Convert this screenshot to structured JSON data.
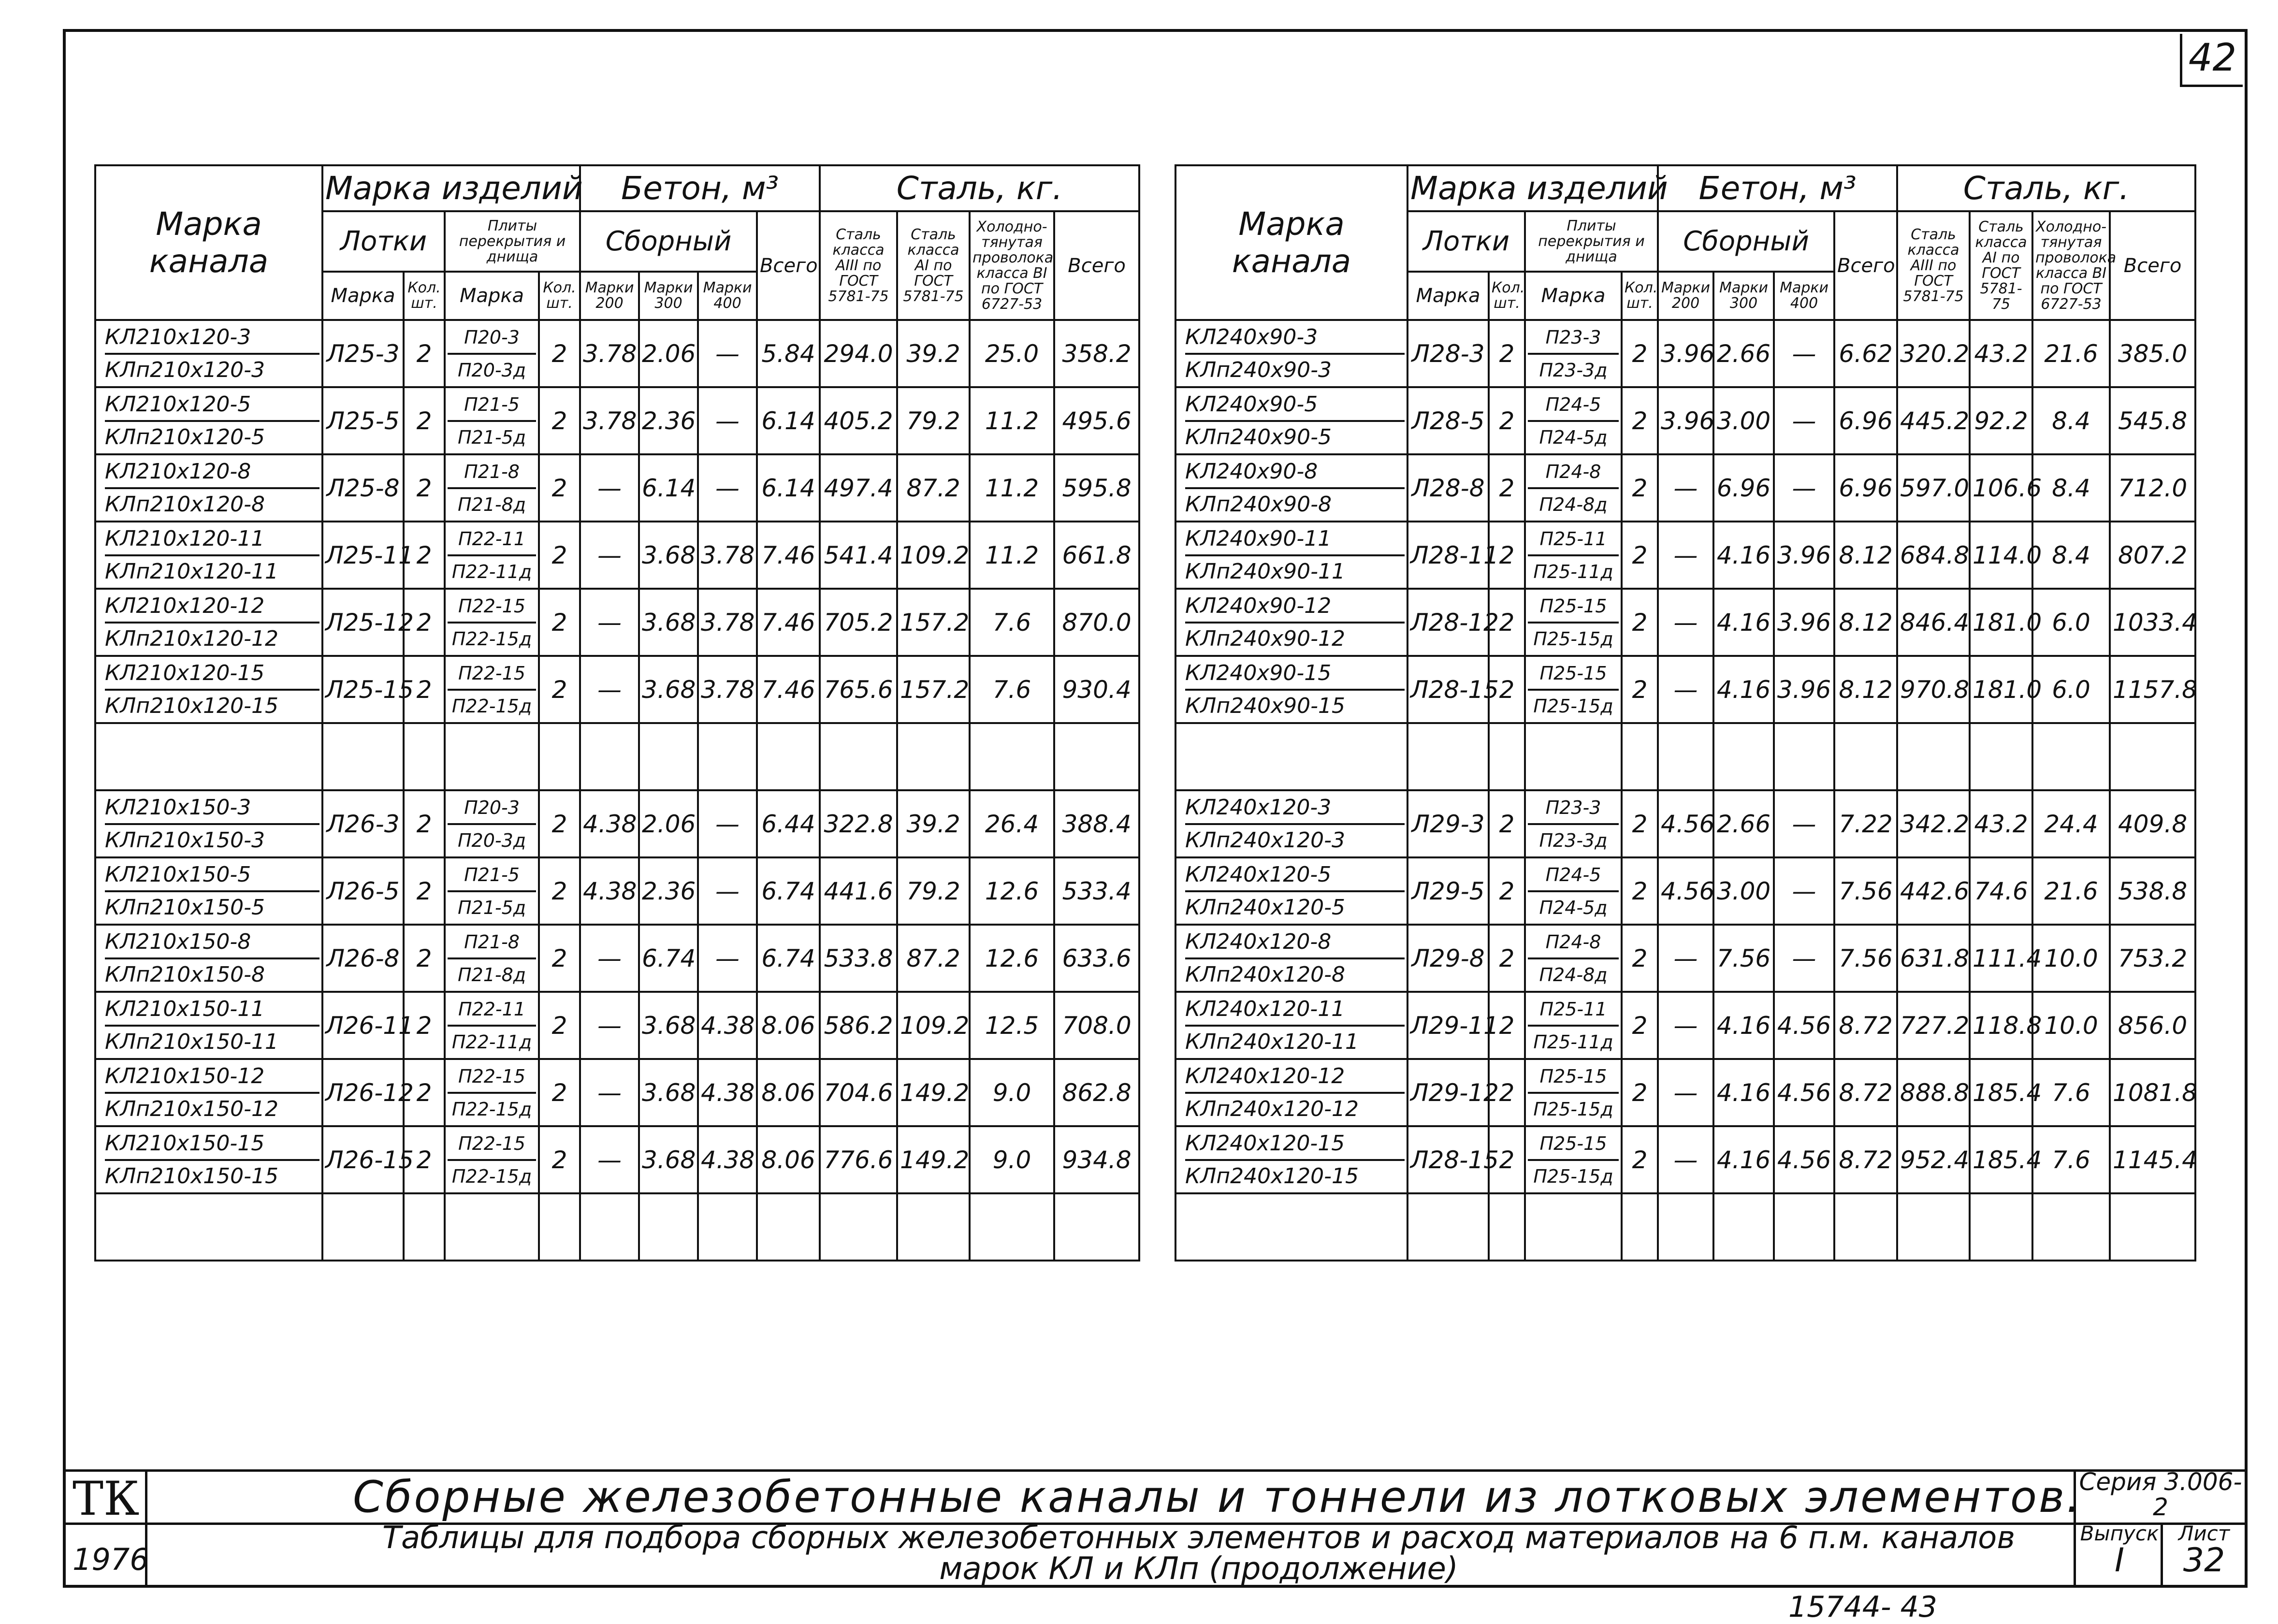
{
  "page_number": "42",
  "headers": {
    "marka_kanala": "Марка канала",
    "marka_izdeliy": "Марка изделий",
    "lotki": "Лотки",
    "plity": "Плиты перекрытия и днища",
    "beton": "Бетон, м³",
    "sbornyi": "Сборный",
    "vsego": "Всего",
    "stal": "Сталь, кг.",
    "stal_a3": "Сталь класса AIII по ГОСТ 5781-75",
    "stal_a1": "Сталь класса AI по ГОСТ 5781-75",
    "provoloka": "Холодно-тянутая проволока класса ВI по ГОСТ 6727-53",
    "marka": "Марка",
    "kol": "Кол. шт.",
    "m200": "Марки 200",
    "m300": "Марки 300",
    "m400": "Марки 400"
  },
  "left_table": {
    "group1": [
      {
        "names": [
          "КЛ210х120-3",
          "КЛп210х120-3"
        ],
        "lotok": "Л25-3",
        "lk": "2",
        "plity": [
          "П20-3",
          "П20-3д"
        ],
        "pk": "2",
        "b200": "3.78",
        "b300": "2.06",
        "b400": "—",
        "bv": "5.84",
        "a3": "294.0",
        "a1": "39.2",
        "pr": "25.0",
        "sv": "358.2"
      },
      {
        "names": [
          "КЛ210х120-5",
          "КЛп210х120-5"
        ],
        "lotok": "Л25-5",
        "lk": "2",
        "plity": [
          "П21-5",
          "П21-5д"
        ],
        "pk": "2",
        "b200": "3.78",
        "b300": "2.36",
        "b400": "—",
        "bv": "6.14",
        "a3": "405.2",
        "a1": "79.2",
        "pr": "11.2",
        "sv": "495.6"
      },
      {
        "names": [
          "КЛ210х120-8",
          "КЛп210х120-8"
        ],
        "lotok": "Л25-8",
        "lk": "2",
        "plity": [
          "П21-8",
          "П21-8д"
        ],
        "pk": "2",
        "b200": "—",
        "b300": "6.14",
        "b400": "—",
        "bv": "6.14",
        "a3": "497.4",
        "a1": "87.2",
        "pr": "11.2",
        "sv": "595.8"
      },
      {
        "names": [
          "КЛ210х120-11",
          "КЛп210х120-11"
        ],
        "lotok": "Л25-11",
        "lk": "2",
        "plity": [
          "П22-11",
          "П22-11д"
        ],
        "pk": "2",
        "b200": "—",
        "b300": "3.68",
        "b400": "3.78",
        "bv": "7.46",
        "a3": "541.4",
        "a1": "109.2",
        "pr": "11.2",
        "sv": "661.8"
      },
      {
        "names": [
          "КЛ210х120-12",
          "КЛп210х120-12"
        ],
        "lotok": "Л25-12",
        "lk": "2",
        "plity": [
          "П22-15",
          "П22-15д"
        ],
        "pk": "2",
        "b200": "—",
        "b300": "3.68",
        "b400": "3.78",
        "bv": "7.46",
        "a3": "705.2",
        "a1": "157.2",
        "pr": "7.6",
        "sv": "870.0"
      },
      {
        "names": [
          "КЛ210х120-15",
          "КЛп210х120-15"
        ],
        "lotok": "Л25-15",
        "lk": "2",
        "plity": [
          "П22-15",
          "П22-15д"
        ],
        "pk": "2",
        "b200": "—",
        "b300": "3.68",
        "b400": "3.78",
        "bv": "7.46",
        "a3": "765.6",
        "a1": "157.2",
        "pr": "7.6",
        "sv": "930.4"
      }
    ],
    "group2": [
      {
        "names": [
          "КЛ210х150-3",
          "КЛп210х150-3"
        ],
        "lotok": "Л26-3",
        "lk": "2",
        "plity": [
          "П20-3",
          "П20-3д"
        ],
        "pk": "2",
        "b200": "4.38",
        "b300": "2.06",
        "b400": "—",
        "bv": "6.44",
        "a3": "322.8",
        "a1": "39.2",
        "pr": "26.4",
        "sv": "388.4"
      },
      {
        "names": [
          "КЛ210х150-5",
          "КЛп210х150-5"
        ],
        "lotok": "Л26-5",
        "lk": "2",
        "plity": [
          "П21-5",
          "П21-5д"
        ],
        "pk": "2",
        "b200": "4.38",
        "b300": "2.36",
        "b400": "—",
        "bv": "6.74",
        "a3": "441.6",
        "a1": "79.2",
        "pr": "12.6",
        "sv": "533.4"
      },
      {
        "names": [
          "КЛ210х150-8",
          "КЛп210х150-8"
        ],
        "lotok": "Л26-8",
        "lk": "2",
        "plity": [
          "П21-8",
          "П21-8д"
        ],
        "pk": "2",
        "b200": "—",
        "b300": "6.74",
        "b400": "—",
        "bv": "6.74",
        "a3": "533.8",
        "a1": "87.2",
        "pr": "12.6",
        "sv": "633.6"
      },
      {
        "names": [
          "КЛ210х150-11",
          "КЛп210х150-11"
        ],
        "lotok": "Л26-11",
        "lk": "2",
        "plity": [
          "П22-11",
          "П22-11д"
        ],
        "pk": "2",
        "b200": "—",
        "b300": "3.68",
        "b400": "4.38",
        "bv": "8.06",
        "a3": "586.2",
        "a1": "109.2",
        "pr": "12.5",
        "sv": "708.0"
      },
      {
        "names": [
          "КЛ210х150-12",
          "КЛп210х150-12"
        ],
        "lotok": "Л26-12",
        "lk": "2",
        "plity": [
          "П22-15",
          "П22-15д"
        ],
        "pk": "2",
        "b200": "—",
        "b300": "3.68",
        "b400": "4.38",
        "bv": "8.06",
        "a3": "704.6",
        "a1": "149.2",
        "pr": "9.0",
        "sv": "862.8"
      },
      {
        "names": [
          "КЛ210х150-15",
          "КЛп210х150-15"
        ],
        "lotok": "Л26-15",
        "lk": "2",
        "plity": [
          "П22-15",
          "П22-15д"
        ],
        "pk": "2",
        "b200": "—",
        "b300": "3.68",
        "b400": "4.38",
        "bv": "8.06",
        "a3": "776.6",
        "a1": "149.2",
        "pr": "9.0",
        "sv": "934.8"
      }
    ]
  },
  "right_table": {
    "group1": [
      {
        "names": [
          "КЛ240х90-3",
          "КЛп240х90-3"
        ],
        "lotok": "Л28-3",
        "lk": "2",
        "plity": [
          "П23-3",
          "П23-3д"
        ],
        "pk": "2",
        "b200": "3.96",
        "b300": "2.66",
        "b400": "—",
        "bv": "6.62",
        "a3": "320.2",
        "a1": "43.2",
        "pr": "21.6",
        "sv": "385.0"
      },
      {
        "names": [
          "КЛ240х90-5",
          "КЛп240х90-5"
        ],
        "lotok": "Л28-5",
        "lk": "2",
        "plity": [
          "П24-5",
          "П24-5д"
        ],
        "pk": "2",
        "b200": "3.96",
        "b300": "3.00",
        "b400": "—",
        "bv": "6.96",
        "a3": "445.2",
        "a1": "92.2",
        "pr": "8.4",
        "sv": "545.8"
      },
      {
        "names": [
          "КЛ240х90-8",
          "КЛп240х90-8"
        ],
        "lotok": "Л28-8",
        "lk": "2",
        "plity": [
          "П24-8",
          "П24-8д"
        ],
        "pk": "2",
        "b200": "—",
        "b300": "6.96",
        "b400": "—",
        "bv": "6.96",
        "a3": "597.0",
        "a1": "106.6",
        "pr": "8.4",
        "sv": "712.0"
      },
      {
        "names": [
          "КЛ240х90-11",
          "КЛп240х90-11"
        ],
        "lotok": "Л28-11",
        "lk": "2",
        "plity": [
          "П25-11",
          "П25-11д"
        ],
        "pk": "2",
        "b200": "—",
        "b300": "4.16",
        "b400": "3.96",
        "bv": "8.12",
        "a3": "684.8",
        "a1": "114.0",
        "pr": "8.4",
        "sv": "807.2"
      },
      {
        "names": [
          "КЛ240х90-12",
          "КЛп240х90-12"
        ],
        "lotok": "Л28-12",
        "lk": "2",
        "plity": [
          "П25-15",
          "П25-15д"
        ],
        "pk": "2",
        "b200": "—",
        "b300": "4.16",
        "b400": "3.96",
        "bv": "8.12",
        "a3": "846.4",
        "a1": "181.0",
        "pr": "6.0",
        "sv": "1033.4"
      },
      {
        "names": [
          "КЛ240х90-15",
          "КЛп240х90-15"
        ],
        "lotok": "Л28-15",
        "lk": "2",
        "plity": [
          "П25-15",
          "П25-15д"
        ],
        "pk": "2",
        "b200": "—",
        "b300": "4.16",
        "b400": "3.96",
        "bv": "8.12",
        "a3": "970.8",
        "a1": "181.0",
        "pr": "6.0",
        "sv": "1157.8"
      }
    ],
    "group2": [
      {
        "names": [
          "КЛ240х120-3",
          "КЛп240х120-3"
        ],
        "lotok": "Л29-3",
        "lk": "2",
        "plity": [
          "П23-3",
          "П23-3д"
        ],
        "pk": "2",
        "b200": "4.56",
        "b300": "2.66",
        "b400": "—",
        "bv": "7.22",
        "a3": "342.2",
        "a1": "43.2",
        "pr": "24.4",
        "sv": "409.8"
      },
      {
        "names": [
          "КЛ240х120-5",
          "КЛп240х120-5"
        ],
        "lotok": "Л29-5",
        "lk": "2",
        "plity": [
          "П24-5",
          "П24-5д"
        ],
        "pk": "2",
        "b200": "4.56",
        "b300": "3.00",
        "b400": "—",
        "bv": "7.56",
        "a3": "442.6",
        "a1": "74.6",
        "pr": "21.6",
        "sv": "538.8"
      },
      {
        "names": [
          "КЛ240х120-8",
          "КЛп240х120-8"
        ],
        "lotok": "Л29-8",
        "lk": "2",
        "plity": [
          "П24-8",
          "П24-8д"
        ],
        "pk": "2",
        "b200": "—",
        "b300": "7.56",
        "b400": "—",
        "bv": "7.56",
        "a3": "631.8",
        "a1": "111.4",
        "pr": "10.0",
        "sv": "753.2"
      },
      {
        "names": [
          "КЛ240х120-11",
          "КЛп240х120-11"
        ],
        "lotok": "Л29-11",
        "lk": "2",
        "plity": [
          "П25-11",
          "П25-11д"
        ],
        "pk": "2",
        "b200": "—",
        "b300": "4.16",
        "b400": "4.56",
        "bv": "8.72",
        "a3": "727.2",
        "a1": "118.8",
        "pr": "10.0",
        "sv": "856.0"
      },
      {
        "names": [
          "КЛ240х120-12",
          "КЛп240х120-12"
        ],
        "lotok": "Л29-12",
        "lk": "2",
        "plity": [
          "П25-15",
          "П25-15д"
        ],
        "pk": "2",
        "b200": "—",
        "b300": "4.16",
        "b400": "4.56",
        "bv": "8.72",
        "a3": "888.8",
        "a1": "185.4",
        "pr": "7.6",
        "sv": "1081.8"
      },
      {
        "names": [
          "КЛ240х120-15",
          "КЛп240х120-15"
        ],
        "lotok": "Л28-15",
        "lk": "2",
        "plity": [
          "П25-15",
          "П25-15д"
        ],
        "pk": "2",
        "b200": "—",
        "b300": "4.16",
        "b400": "4.56",
        "bv": "8.72",
        "a3": "952.4",
        "a1": "185.4",
        "pr": "7.6",
        "sv": "1145.4"
      }
    ]
  },
  "title_block": {
    "org": "ТК",
    "year": "1976",
    "title": "Сборные железобетонные каналы и тоннели из лотковых элементов.",
    "subtitle": "Таблицы для подбора сборных железобетонных элементов и расход материалов на 6 п.м. каналов марок КЛ и КЛп (продолжение)",
    "series_label": "Серия 3.006-2",
    "issue_label": "Выпуск",
    "issue_value": "I",
    "sheet_label": "Лист",
    "sheet_value": "32"
  },
  "footer_code": "15744-   43"
}
